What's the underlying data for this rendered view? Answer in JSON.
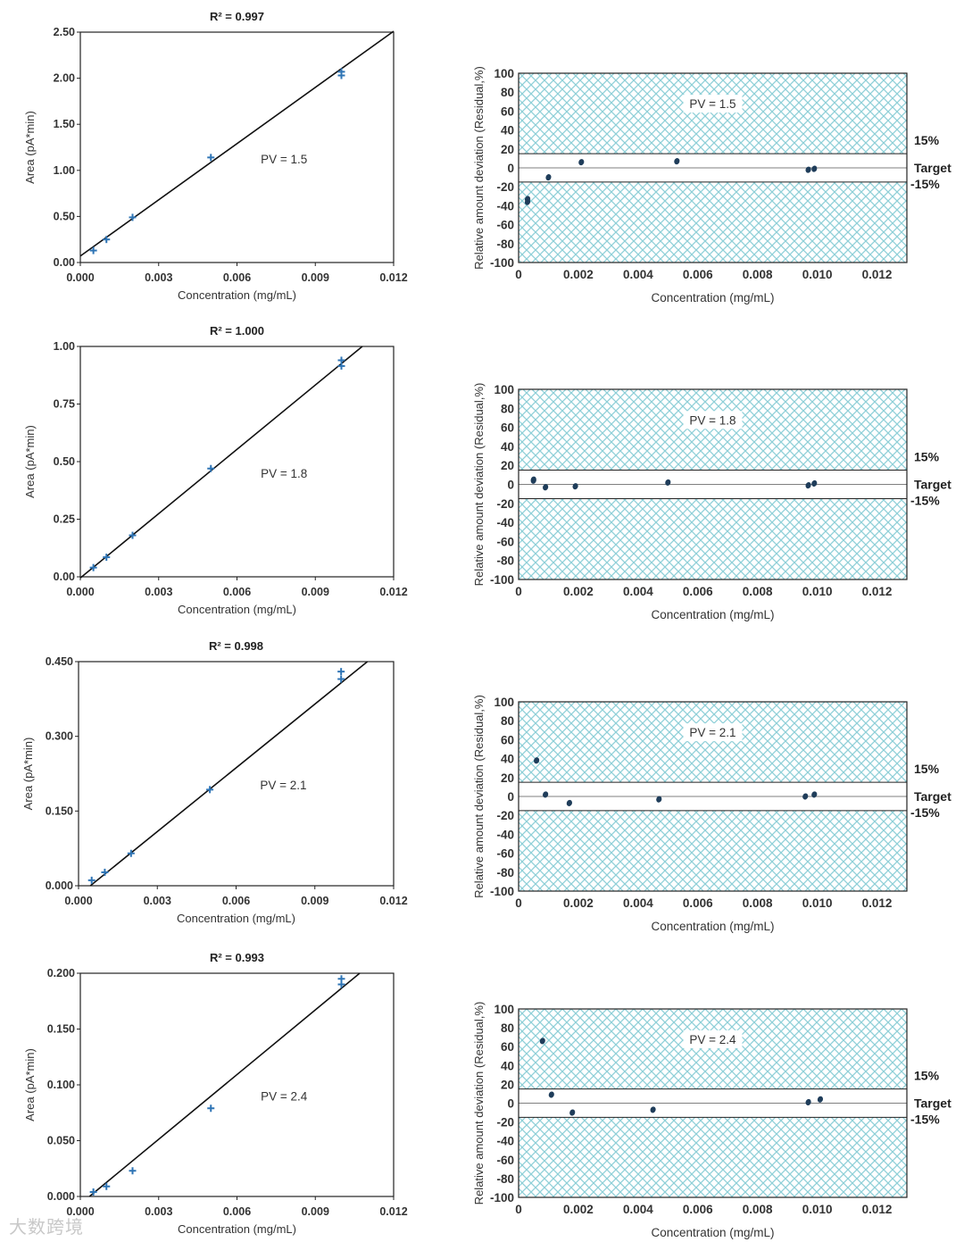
{
  "watermark": "大数跨境",
  "colors": {
    "marker": "#2e74b5",
    "residual_point": "#1f3d5a",
    "hatch": "#8fd0d8",
    "line": "#111111"
  },
  "calibration_xlabel": "Concentration (mg/mL)",
  "residual_xlabel": "Concentration (mg/mL)",
  "calibration_ylabel": "Area (pA*min)",
  "residual_ylabel": "Relative amount deviation (Residual,%)",
  "band_labels": {
    "upper": "15%",
    "target": "Target",
    "lower": "-15%"
  },
  "chart_data": [
    {
      "type": "scatter",
      "title": "R² = 0.997",
      "annotation": "PV = 1.5",
      "xlabel": "Concentration (mg/mL)",
      "ylabel": "Area (pA*min)",
      "xlim": [
        0,
        0.012
      ],
      "ylim": [
        0,
        2.5
      ],
      "xticks": [
        "0.000",
        "0.003",
        "0.006",
        "0.009",
        "0.012"
      ],
      "yticks": [
        "0.00",
        "0.50",
        "1.00",
        "1.50",
        "2.00",
        "2.50"
      ],
      "yticks_values": [
        0,
        0.5,
        1.0,
        1.5,
        2.0,
        2.5
      ],
      "x": [
        0.0005,
        0.001,
        0.002,
        0.005,
        0.01,
        0.01
      ],
      "y": [
        0.13,
        0.25,
        0.49,
        1.14,
        2.03,
        2.07
      ],
      "fit_line": [
        [
          0.0,
          0.07
        ],
        [
          0.012,
          2.51
        ]
      ]
    },
    {
      "type": "scatter",
      "title": "",
      "annotation": "PV = 1.5",
      "xlabel": "Concentration (mg/mL)",
      "ylabel": "Relative amount deviation (Residual,%)",
      "xlim": [
        0,
        0.013
      ],
      "ylim": [
        -100,
        100
      ],
      "xticks": [
        "0",
        "0.002",
        "0.004",
        "0.006",
        "0.008",
        "0.010",
        "0.012"
      ],
      "yticks": [
        "100",
        "80",
        "60",
        "40",
        "20",
        "0",
        "-20",
        "-40",
        "-60",
        "-80",
        "-100"
      ],
      "band": [
        -15,
        15
      ],
      "x": [
        0.0003,
        0.0003,
        0.001,
        0.0021,
        0.0053,
        0.0097,
        0.0099
      ],
      "y": [
        -36,
        -33,
        -10,
        6,
        7,
        -2,
        -1
      ]
    },
    {
      "type": "scatter",
      "title": "R² = 1.000",
      "annotation": "PV = 1.8",
      "xlabel": "Concentration (mg/mL)",
      "ylabel": "Area (pA*min)",
      "xlim": [
        0,
        0.012
      ],
      "ylim": [
        0,
        1.0
      ],
      "xticks": [
        "0.000",
        "0.003",
        "0.006",
        "0.009",
        "0.012"
      ],
      "yticks": [
        "0.00",
        "0.25",
        "0.50",
        "0.75",
        "1.00"
      ],
      "yticks_values": [
        0,
        0.25,
        0.5,
        0.75,
        1.0
      ],
      "x": [
        0.0005,
        0.001,
        0.002,
        0.005,
        0.01,
        0.01
      ],
      "y": [
        0.04,
        0.085,
        0.18,
        0.47,
        0.915,
        0.94
      ],
      "fit_line": [
        [
          0.0,
          -0.005
        ],
        [
          0.0108,
          1.0
        ]
      ]
    },
    {
      "type": "scatter",
      "title": "",
      "annotation": "PV = 1.8",
      "xlabel": "Concentration (mg/mL)",
      "ylabel": "Relative amount deviation (Residual,%)",
      "xlim": [
        0,
        0.013
      ],
      "ylim": [
        -100,
        100
      ],
      "xticks": [
        "0",
        "0.002",
        "0.004",
        "0.006",
        "0.008",
        "0.010",
        "0.012"
      ],
      "yticks": [
        "100",
        "80",
        "60",
        "40",
        "20",
        "0",
        "-20",
        "-40",
        "-60",
        "-80",
        "-100"
      ],
      "band": [
        -15,
        15
      ],
      "x": [
        0.0005,
        0.0005,
        0.0009,
        0.0019,
        0.005,
        0.0097,
        0.0099
      ],
      "y": [
        5,
        4,
        -3,
        -2,
        2,
        -1,
        1
      ]
    },
    {
      "type": "scatter",
      "title": "R² = 0.998",
      "annotation": "PV = 2.1",
      "xlabel": "Concentration (mg/mL)",
      "ylabel": "Area (pA*min)",
      "xlim": [
        0,
        0.012
      ],
      "ylim": [
        0,
        0.45
      ],
      "xticks": [
        "0.000",
        "0.003",
        "0.006",
        "0.009",
        "0.012"
      ],
      "yticks": [
        "0.000",
        "0.150",
        "0.300",
        "0.450"
      ],
      "yticks_values": [
        0,
        0.15,
        0.3,
        0.45
      ],
      "x": [
        0.0005,
        0.001,
        0.002,
        0.005,
        0.01,
        0.01
      ],
      "y": [
        0.011,
        0.027,
        0.065,
        0.193,
        0.415,
        0.43
      ],
      "fit_line": [
        [
          0.00045,
          0.0
        ],
        [
          0.011,
          0.45
        ]
      ]
    },
    {
      "type": "scatter",
      "title": "",
      "annotation": "PV = 2.1",
      "xlabel": "Concentration (mg/mL)",
      "ylabel": "Relative amount deviation (Residual,%)",
      "xlim": [
        0,
        0.013
      ],
      "ylim": [
        -100,
        100
      ],
      "xticks": [
        "0",
        "0.002",
        "0.004",
        "0.006",
        "0.008",
        "0.010",
        "0.012"
      ],
      "yticks": [
        "100",
        "80",
        "60",
        "40",
        "20",
        "0",
        "-20",
        "-40",
        "-60",
        "-80",
        "-100"
      ],
      "band": [
        -15,
        15
      ],
      "x": [
        0.0006,
        0.0009,
        0.0017,
        0.0047,
        0.0096,
        0.0099
      ],
      "y": [
        38,
        2,
        -7,
        -3,
        0,
        2
      ]
    },
    {
      "type": "scatter",
      "title": "R² = 0.993",
      "annotation": "PV = 2.4",
      "xlabel": "Concentration (mg/mL)",
      "ylabel": "Area (pA*min)",
      "xlim": [
        0,
        0.012
      ],
      "ylim": [
        0,
        0.2
      ],
      "xticks": [
        "0.000",
        "0.003",
        "0.006",
        "0.009",
        "0.012"
      ],
      "yticks": [
        "0.000",
        "0.050",
        "0.100",
        "0.150",
        "0.200"
      ],
      "yticks_values": [
        0,
        0.05,
        0.1,
        0.15,
        0.2
      ],
      "x": [
        0.0005,
        0.001,
        0.002,
        0.005,
        0.01,
        0.01
      ],
      "y": [
        0.004,
        0.009,
        0.023,
        0.079,
        0.19,
        0.195
      ],
      "fit_line": [
        [
          0.00035,
          0.0
        ],
        [
          0.0107,
          0.2
        ]
      ]
    },
    {
      "type": "scatter",
      "title": "",
      "annotation": "PV = 2.4",
      "xlabel": "Concentration (mg/mL)",
      "ylabel": "Relative amount deviation (Residual,%)",
      "xlim": [
        0,
        0.013
      ],
      "ylim": [
        -100,
        100
      ],
      "xticks": [
        "0",
        "0.002",
        "0.004",
        "0.006",
        "0.008",
        "0.010",
        "0.012"
      ],
      "yticks": [
        "100",
        "80",
        "60",
        "40",
        "20",
        "0",
        "-20",
        "-40",
        "-60",
        "-80",
        "-100"
      ],
      "band": [
        -15,
        15
      ],
      "x": [
        0.0008,
        0.0011,
        0.0018,
        0.0045,
        0.0097,
        0.0101
      ],
      "y": [
        66,
        9,
        -10,
        -7,
        1,
        4
      ]
    }
  ]
}
